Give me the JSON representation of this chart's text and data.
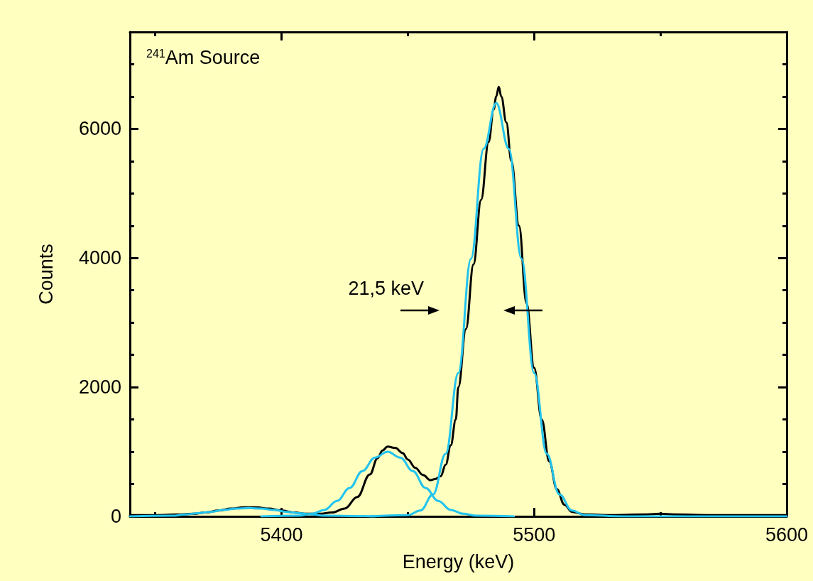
{
  "chart_data": {
    "type": "line",
    "xlabel": "Energy (keV)",
    "ylabel": "Counts",
    "annotations": [
      "$^{241}$Am Source",
      "21,5 keV"
    ],
    "xlim": [
      5340,
      5600
    ],
    "ylim": [
      0,
      7500
    ],
    "xticks": [
      {
        "value": 5350,
        "label": null
      },
      5400,
      {
        "value": 5450,
        "label": null
      },
      5500,
      {
        "value": 5550,
        "label": null
      },
      5600
    ],
    "yticks": [
      0,
      {
        "value": 500,
        "label": null
      },
      {
        "value": 1000,
        "label": null
      },
      {
        "value": 1500,
        "label": null
      },
      2000,
      {
        "value": 2500,
        "label": null
      },
      {
        "value": 3000,
        "label": null
      },
      {
        "value": 3500,
        "label": null
      },
      4000,
      {
        "value": 4500,
        "label": null
      },
      {
        "value": 5000,
        "label": null
      },
      {
        "value": 5500,
        "label": null
      },
      6000,
      {
        "value": 6500,
        "label": null
      },
      {
        "value": 7000,
        "label": null
      }
    ],
    "grid": false,
    "series": [
      {
        "color": "#000000",
        "x": [
          5340,
          5350,
          5360,
          5365,
          5370,
          5375,
          5380,
          5385,
          5390,
          5395,
          5400,
          5405,
          5410,
          5415,
          5420,
          5425,
          5430,
          5435,
          5438,
          5440,
          5442,
          5445,
          5448,
          5450,
          5453,
          5456,
          5459,
          5461,
          5463,
          5465,
          5467,
          5469,
          5470,
          5473,
          5476,
          5479,
          5482,
          5484,
          5485,
          5486,
          5487,
          5489,
          5491,
          5494,
          5497,
          5500,
          5503,
          5506,
          5509,
          5512,
          5515,
          5520,
          5530,
          5545,
          5550,
          5555,
          5570,
          5600
        ],
        "values": [
          20,
          20,
          30,
          40,
          60,
          90,
          120,
          140,
          140,
          120,
          90,
          60,
          40,
          40,
          60,
          120,
          300,
          650,
          900,
          1020,
          1080,
          1060,
          980,
          880,
          750,
          640,
          560,
          580,
          620,
          800,
          1100,
          1500,
          2000,
          2900,
          3900,
          4900,
          5800,
          6300,
          6500,
          6650,
          6500,
          6100,
          5500,
          4500,
          3300,
          2300,
          1500,
          850,
          420,
          180,
          70,
          30,
          20,
          30,
          40,
          30,
          20,
          20
        ]
      },
      {
        "color": "#22c3ee",
        "x": [
          5340,
          5357,
          5362,
          5367,
          5372,
          5377,
          5382,
          5387,
          5392,
          5397,
          5402,
          5407,
          5412,
          5417,
          5437
        ],
        "values": [
          0,
          10,
          30,
          50,
          70,
          100,
          120,
          130,
          120,
          100,
          70,
          50,
          30,
          10,
          0
        ]
      },
      {
        "color": "#22c3ee",
        "x": [
          5392,
          5407,
          5412,
          5417,
          5422,
          5427,
          5432,
          5437,
          5442,
          5447,
          5452,
          5457,
          5462,
          5467,
          5472,
          5477,
          5492
        ],
        "values": [
          0,
          10,
          40,
          100,
          240,
          440,
          700,
          910,
          1000,
          910,
          700,
          440,
          240,
          100,
          40,
          10,
          0
        ]
      },
      {
        "color": "#22c3ee",
        "x": [
          5435,
          5450,
          5455,
          5460,
          5465,
          5470,
          5475,
          5480,
          5485,
          5490,
          5495,
          5500,
          5505,
          5510,
          5515,
          5520,
          5535,
          5600
        ],
        "values": [
          0,
          20,
          90,
          340,
          970,
          2220,
          3990,
          5690,
          6400,
          5690,
          3990,
          2220,
          970,
          340,
          90,
          20,
          0,
          0
        ]
      }
    ]
  }
}
